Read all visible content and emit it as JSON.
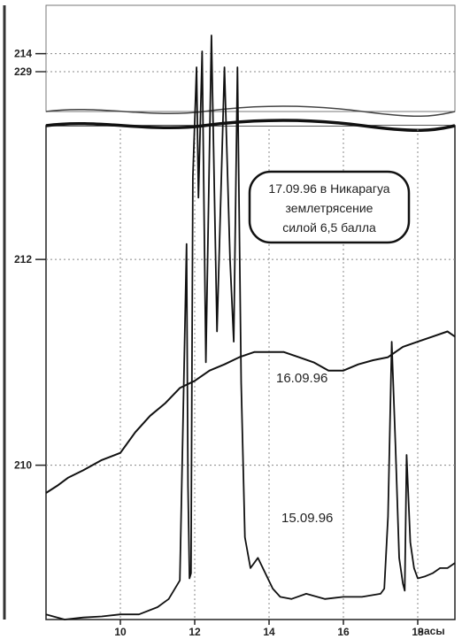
{
  "chart_data": {
    "type": "line",
    "title": "",
    "xlabel": "часы",
    "ylabel": "",
    "xlim": [
      8,
      19
    ],
    "ylim": [
      208.5,
      213.3
    ],
    "xticks": [
      10,
      12,
      14,
      16,
      18
    ],
    "yticks": [
      210,
      212,
      214
    ],
    "upper_panel_yticks": [
      229
    ],
    "grid": true,
    "broken_axis": true,
    "annotation": "17.09.96 в Никарагуа землетрясение силой 6,5 балла",
    "series": [
      {
        "name": "16.09.96",
        "x": [
          8.0,
          8.3,
          8.6,
          9.0,
          9.5,
          10.0,
          10.4,
          10.8,
          11.2,
          11.6,
          12.0,
          12.4,
          12.8,
          13.2,
          13.6,
          14.0,
          14.4,
          14.8,
          15.2,
          15.6,
          16.0,
          16.4,
          16.8,
          17.2,
          17.6,
          18.0,
          18.4,
          18.8,
          19.0
        ],
        "y": [
          209.73,
          209.8,
          209.88,
          209.95,
          210.05,
          210.12,
          210.32,
          210.48,
          210.6,
          210.75,
          210.82,
          210.92,
          210.98,
          211.05,
          211.1,
          211.1,
          211.1,
          211.05,
          211.0,
          210.92,
          210.92,
          210.98,
          211.02,
          211.05,
          211.15,
          211.2,
          211.25,
          211.3,
          211.25
        ]
      },
      {
        "name": "15.09.96",
        "x": [
          8.0,
          8.5,
          9.0,
          9.5,
          10.0,
          10.5,
          11.0,
          11.3,
          11.6,
          11.78,
          11.82,
          11.86,
          11.9,
          11.95,
          12.05,
          12.1,
          12.2,
          12.3,
          12.45,
          12.6,
          12.8,
          12.95,
          13.05,
          13.15,
          13.25,
          13.35,
          13.5,
          13.7,
          13.9,
          14.1,
          14.3,
          14.6,
          15.0,
          15.5,
          16.0,
          16.5,
          17.0,
          17.1,
          17.2,
          17.3,
          17.4,
          17.5,
          17.6,
          17.65,
          17.7,
          17.8,
          17.9,
          18.0,
          18.2,
          18.4,
          18.6,
          18.8,
          19.0
        ],
        "y": [
          208.55,
          208.5,
          208.52,
          208.53,
          208.55,
          208.55,
          208.62,
          208.7,
          208.88,
          212.15,
          209.8,
          208.9,
          208.95,
          212.8,
          213.3,
          212.6,
          213.3,
          211.0,
          213.3,
          211.3,
          213.3,
          212.0,
          211.2,
          213.3,
          210.8,
          209.3,
          209.0,
          209.1,
          208.95,
          208.8,
          208.72,
          208.7,
          208.75,
          208.7,
          208.72,
          208.72,
          208.75,
          208.8,
          209.5,
          211.2,
          210.2,
          209.1,
          208.85,
          208.78,
          210.1,
          209.25,
          209.0,
          208.9,
          208.92,
          208.95,
          209.0,
          209.0,
          209.05
        ]
      }
    ]
  }
}
